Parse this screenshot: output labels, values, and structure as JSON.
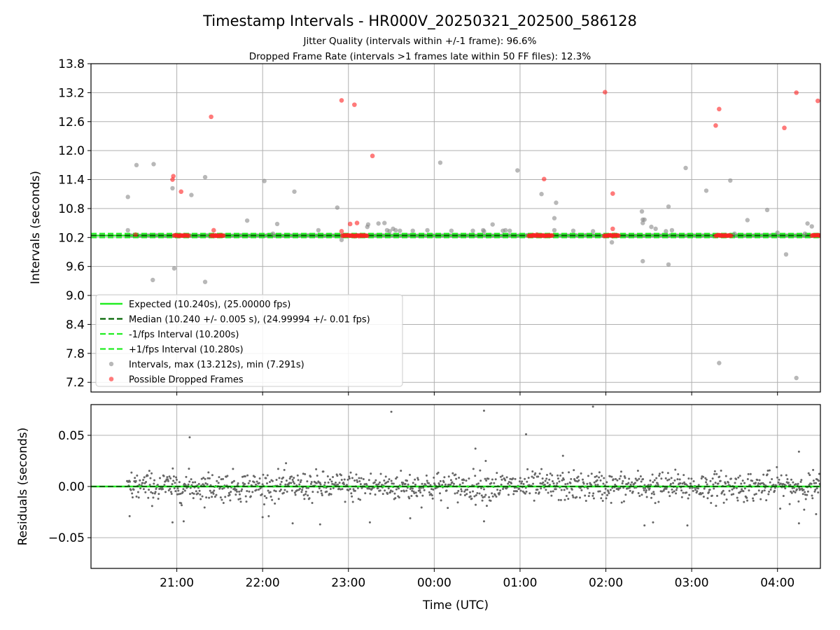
{
  "chart_data": [
    {
      "type": "scatter",
      "title": "Timestamp Intervals - HR000V_20250321_202500_586128",
      "subtitle_lines": [
        "Jitter Quality (intervals within +/-1 frame): 96.6%",
        "Dropped Frame Rate (intervals >1 frames late within 50 FF files): 12.3%"
      ],
      "ylabel": "Intervals (seconds)",
      "ylim": [
        7.0,
        13.8
      ],
      "yticks": [
        "7.2",
        "7.8",
        "8.4",
        "9.0",
        "9.6",
        "10.2",
        "10.8",
        "11.4",
        "12.0",
        "12.6",
        "13.2",
        "13.8"
      ],
      "xlim_hours": [
        20.0,
        28.5
      ],
      "xtick_hours": [
        21,
        22,
        23,
        24,
        25,
        26,
        27,
        28
      ],
      "grid": true,
      "legend_placement": "lower-left",
      "legend": [
        "Expected (10.240s), (25.00000 fps)",
        "Median (10.240 +/- 0.005 s), (24.99994 +/- 0.01 fps)",
        "-1/fps Interval (10.200s)",
        "+1/fps Interval (10.280s)",
        "Intervals, max (13.212s), min (7.291s)",
        "Possible Dropped Frames"
      ],
      "lines": {
        "expected": 10.24,
        "median": 10.24,
        "minus_fps": 10.2,
        "plus_fps": 10.28
      },
      "colors": {
        "expected": "#22ee22",
        "median": "#006400",
        "minus_fps": "#22ee22",
        "plus_fps": "#22ee22",
        "intervals": "#888888",
        "dropped": "#ff2222"
      },
      "intervals_outliers": [
        [
          20.43,
          11.04
        ],
        [
          20.43,
          10.35
        ],
        [
          20.53,
          11.7
        ],
        [
          20.73,
          11.72
        ],
        [
          20.72,
          9.32
        ],
        [
          20.95,
          11.22
        ],
        [
          20.97,
          9.56
        ],
        [
          21.17,
          11.08
        ],
        [
          21.33,
          11.45
        ],
        [
          21.33,
          9.28
        ],
        [
          21.82,
          10.55
        ],
        [
          22.02,
          11.37
        ],
        [
          22.17,
          10.48
        ],
        [
          22.37,
          11.15
        ],
        [
          22.12,
          10.28
        ],
        [
          22.65,
          10.35
        ],
        [
          22.87,
          10.82
        ],
        [
          22.92,
          10.15
        ],
        [
          23.22,
          10.42
        ],
        [
          23.23,
          10.47
        ],
        [
          23.35,
          10.49
        ],
        [
          23.42,
          10.5
        ],
        [
          23.45,
          10.35
        ],
        [
          23.48,
          10.33
        ],
        [
          23.52,
          10.38
        ],
        [
          23.55,
          10.35
        ],
        [
          23.6,
          10.34
        ],
        [
          23.75,
          10.34
        ],
        [
          23.92,
          10.35
        ],
        [
          24.07,
          11.75
        ],
        [
          24.2,
          10.34
        ],
        [
          24.45,
          10.34
        ],
        [
          24.57,
          10.35
        ],
        [
          24.58,
          10.33
        ],
        [
          24.68,
          10.47
        ],
        [
          24.8,
          10.34
        ],
        [
          24.83,
          10.35
        ],
        [
          24.88,
          10.34
        ],
        [
          24.97,
          11.59
        ],
        [
          25.25,
          11.1
        ],
        [
          25.4,
          10.35
        ],
        [
          25.42,
          10.92
        ],
        [
          25.4,
          10.6
        ],
        [
          25.62,
          10.34
        ],
        [
          25.85,
          10.33
        ],
        [
          26.07,
          10.1
        ],
        [
          26.42,
          10.74
        ],
        [
          26.43,
          10.57
        ],
        [
          26.45,
          10.57
        ],
        [
          26.43,
          10.5
        ],
        [
          26.43,
          9.71
        ],
        [
          26.53,
          10.42
        ],
        [
          26.58,
          10.38
        ],
        [
          26.7,
          10.33
        ],
        [
          26.73,
          10.84
        ],
        [
          26.73,
          9.64
        ],
        [
          26.77,
          10.35
        ],
        [
          26.93,
          11.64
        ],
        [
          27.17,
          11.17
        ],
        [
          27.32,
          7.6
        ],
        [
          27.45,
          11.38
        ],
        [
          27.65,
          10.56
        ],
        [
          27.88,
          10.77
        ],
        [
          28.1,
          9.85
        ],
        [
          28.22,
          7.29
        ],
        [
          28.32,
          10.28
        ],
        [
          28.35,
          10.49
        ],
        [
          28.4,
          10.43
        ],
        [
          28.0,
          10.3
        ],
        [
          27.5,
          10.28
        ]
      ],
      "dropped_points": [
        [
          20.52,
          10.26
        ],
        [
          20.95,
          11.4
        ],
        [
          20.96,
          11.47
        ],
        [
          21.05,
          11.15
        ],
        [
          21.4,
          12.7
        ],
        [
          21.43,
          10.35
        ],
        [
          22.92,
          13.04
        ],
        [
          22.92,
          10.33
        ],
        [
          23.02,
          10.48
        ],
        [
          23.07,
          12.95
        ],
        [
          23.1,
          10.5
        ],
        [
          23.28,
          11.89
        ],
        [
          25.28,
          11.41
        ],
        [
          25.99,
          13.21
        ],
        [
          26.08,
          10.38
        ],
        [
          26.08,
          11.11
        ],
        [
          27.28,
          12.52
        ],
        [
          27.32,
          12.86
        ],
        [
          28.08,
          12.47
        ],
        [
          28.22,
          13.2
        ],
        [
          28.47,
          13.03
        ]
      ],
      "dropped_clusters": [
        [
          20.97,
          21.15
        ],
        [
          21.4,
          21.55
        ],
        [
          22.93,
          23.23
        ],
        [
          25.1,
          25.38
        ],
        [
          25.98,
          26.15
        ],
        [
          27.28,
          27.47
        ],
        [
          28.4,
          28.5
        ]
      ]
    },
    {
      "type": "scatter",
      "ylabel": "Residuals (seconds)",
      "xlabel": "Time (UTC)",
      "ylim": [
        -0.08,
        0.08
      ],
      "yticks": [
        "−0.05",
        "0.00",
        "0.05"
      ],
      "ytick_values": [
        -0.05,
        0.0,
        0.05
      ],
      "xtick_labels": [
        "21:00",
        "22:00",
        "23:00",
        "00:00",
        "01:00",
        "02:00",
        "03:00",
        "04:00"
      ],
      "xtick_hours": [
        21,
        22,
        23,
        24,
        25,
        26,
        27,
        28
      ],
      "xlim_hours": [
        20.0,
        28.5
      ],
      "data_start_hour": 20.42,
      "typical_spread": 0.012,
      "residual_outliers": [
        [
          21.15,
          0.048
        ],
        [
          23.5,
          0.073
        ],
        [
          24.58,
          0.074
        ],
        [
          25.07,
          0.051
        ],
        [
          25.85,
          0.078
        ],
        [
          24.48,
          0.037
        ],
        [
          28.25,
          0.034
        ],
        [
          20.45,
          -0.029
        ],
        [
          20.95,
          -0.035
        ],
        [
          21.08,
          -0.034
        ],
        [
          22.0,
          -0.03
        ],
        [
          22.35,
          -0.036
        ],
        [
          22.67,
          -0.037
        ],
        [
          23.25,
          -0.035
        ],
        [
          23.72,
          -0.031
        ],
        [
          24.58,
          -0.034
        ],
        [
          26.45,
          -0.038
        ],
        [
          26.55,
          -0.035
        ],
        [
          26.95,
          -0.038
        ],
        [
          28.25,
          -0.036
        ],
        [
          28.45,
          -0.027
        ],
        [
          25.5,
          0.03
        ],
        [
          24.6,
          0.025
        ]
      ]
    }
  ]
}
